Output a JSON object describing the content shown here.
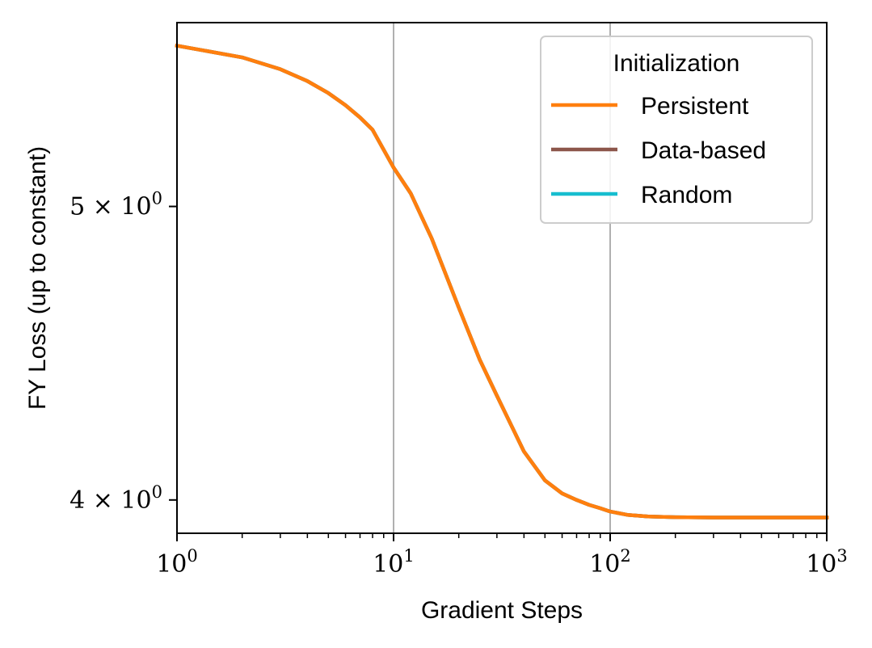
{
  "chart_data": {
    "type": "line",
    "xlabel": "Gradient Steps",
    "ylabel": "FY Loss (up to constant)",
    "x_scale": "log",
    "y_scale": "log",
    "xlim": [
      1,
      1000
    ],
    "ylim": [
      3.9,
      5.75
    ],
    "grid": "vertical major lines",
    "x_ticks": [
      {
        "base": "10",
        "exp": "0"
      },
      {
        "base": "10",
        "exp": "1"
      },
      {
        "base": "10",
        "exp": "2"
      },
      {
        "base": "10",
        "exp": "3"
      }
    ],
    "y_ticks": [
      {
        "value": 4,
        "coef": "4",
        "base": "10",
        "exp": "0"
      },
      {
        "value": 5,
        "coef": "5",
        "base": "10",
        "exp": "0"
      }
    ],
    "legend": {
      "title": "Initialization",
      "position": "top-right"
    },
    "series": [
      {
        "name": "Random",
        "color": "#17becf",
        "x": [
          1,
          2,
          3,
          4,
          5,
          6,
          7,
          8,
          10,
          12,
          15,
          20,
          25,
          30,
          40,
          50,
          60,
          70,
          80,
          90,
          100,
          120,
          150,
          200,
          300,
          500,
          700,
          1000
        ],
        "y": [
          5.65,
          5.6,
          5.55,
          5.5,
          5.45,
          5.4,
          5.35,
          5.3,
          5.15,
          5.05,
          4.88,
          4.63,
          4.45,
          4.33,
          4.15,
          4.06,
          4.02,
          4.0,
          3.985,
          3.975,
          3.965,
          3.955,
          3.95,
          3.948,
          3.947,
          3.947,
          3.947,
          3.947
        ]
      },
      {
        "name": "Data-based",
        "color": "#8c564b",
        "x": [
          1,
          2,
          3,
          4,
          5,
          6,
          7,
          8,
          10,
          12,
          15,
          20,
          25,
          30,
          40,
          50,
          60,
          70,
          80,
          90,
          100,
          120,
          150,
          200,
          300,
          500,
          700,
          1000
        ],
        "y": [
          5.65,
          5.6,
          5.55,
          5.5,
          5.45,
          5.4,
          5.35,
          5.3,
          5.15,
          5.05,
          4.88,
          4.63,
          4.45,
          4.33,
          4.15,
          4.06,
          4.02,
          4.0,
          3.985,
          3.975,
          3.965,
          3.955,
          3.95,
          3.948,
          3.947,
          3.947,
          3.947,
          3.947
        ]
      },
      {
        "name": "Persistent",
        "color": "#ff7f0e",
        "x": [
          1,
          2,
          3,
          4,
          5,
          6,
          7,
          8,
          10,
          12,
          15,
          20,
          25,
          30,
          40,
          50,
          60,
          70,
          80,
          90,
          100,
          120,
          150,
          200,
          300,
          500,
          700,
          1000
        ],
        "y": [
          5.65,
          5.6,
          5.55,
          5.5,
          5.45,
          5.4,
          5.35,
          5.3,
          5.15,
          5.05,
          4.88,
          4.63,
          4.45,
          4.33,
          4.15,
          4.06,
          4.02,
          4.0,
          3.985,
          3.975,
          3.965,
          3.955,
          3.95,
          3.948,
          3.947,
          3.947,
          3.947,
          3.947
        ]
      }
    ],
    "legend_order": [
      "Persistent",
      "Data-based",
      "Random"
    ]
  }
}
